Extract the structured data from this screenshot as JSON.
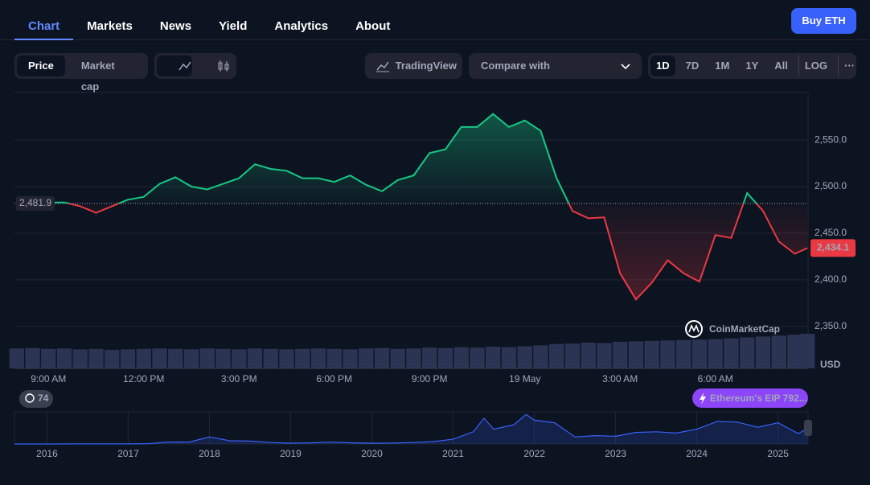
{
  "nav": {
    "tabs": [
      "Chart",
      "Markets",
      "News",
      "Yield",
      "Analytics",
      "About"
    ],
    "button": "Buy ETH"
  },
  "toolbar": {
    "toggle": [
      "Price",
      "Market cap"
    ],
    "tradingview": "TradingView",
    "compare": "Compare with",
    "ranges": [
      "1D",
      "7D",
      "1M",
      "1Y",
      "All",
      "LOG"
    ]
  },
  "watermark": "CoinMarketCap",
  "events_count": 74,
  "event": "Ethereum's EIP 792...",
  "chart_data": [
    {
      "type": "line",
      "x": [
        8,
        8.5,
        9,
        9.5,
        10,
        10.5,
        11,
        11.5,
        12,
        12.5,
        13,
        13.5,
        14,
        14.5,
        15,
        15.5,
        16,
        16.5,
        17,
        17.5,
        18,
        18.5,
        19,
        19.5,
        20,
        20.5,
        21,
        21.5,
        22,
        22.5,
        23,
        23.5,
        24,
        24.5,
        25,
        25.5,
        26,
        26.5,
        27,
        27.5,
        28,
        28.5,
        29,
        29.5,
        30,
        30.5,
        31,
        31.5,
        32,
        32.5,
        32.9
      ],
      "values": [
        2483.6,
        2484.5,
        2483,
        2483,
        2479,
        2472,
        2479,
        2486,
        2489,
        2503,
        2510,
        2500,
        2497,
        2503,
        2509,
        2524,
        2519,
        2517,
        2509,
        2509,
        2505,
        2512,
        2502,
        2495,
        2507,
        2512,
        2536,
        2540,
        2564,
        2564,
        2578,
        2564,
        2571,
        2560,
        2509,
        2474,
        2466,
        2467,
        2407,
        2379,
        2397,
        2421,
        2407,
        2398,
        2448,
        2445,
        2493,
        2474,
        2441,
        2428,
        2434.1
      ],
      "volume": [
        45,
        46,
        44,
        45,
        43,
        44,
        42,
        43,
        44,
        45,
        44,
        43,
        45,
        44,
        43,
        45,
        44,
        43,
        44,
        45,
        44,
        43,
        45,
        46,
        44,
        45,
        47,
        46,
        48,
        47,
        49,
        48,
        50,
        52,
        55,
        56,
        58,
        57,
        60,
        61,
        62,
        63,
        64,
        65,
        66,
        68,
        70,
        72,
        74,
        76,
        78
      ],
      "vlim": [
        0,
        100
      ],
      "xlim": [
        7.93,
        32.92
      ],
      "xticks": [
        {
          "value": 9,
          "label": "9:00 AM"
        },
        {
          "value": 12,
          "label": "12:00 PM"
        },
        {
          "value": 15,
          "label": "3:00 PM"
        },
        {
          "value": 18,
          "label": "6:00 PM"
        },
        {
          "value": 21,
          "label": "9:00 PM"
        },
        {
          "value": 24,
          "label": "19 May"
        },
        {
          "value": 27,
          "label": "3:00 AM"
        },
        {
          "value": 30,
          "label": "6:00 AM"
        }
      ],
      "ylim": [
        2305,
        2601
      ],
      "yticks": [
        {
          "value": 2350,
          "label": "2,350.0"
        },
        {
          "value": 2400,
          "label": "2,400.0"
        },
        {
          "value": 2450,
          "label": "2,450.0"
        },
        {
          "value": 2500,
          "label": "2,500.0"
        },
        {
          "value": 2550,
          "label": "2,550.0"
        }
      ],
      "baseline": {
        "value": 2481.9,
        "label": "2,481.9"
      },
      "last_price": {
        "value": 2434.1,
        "label": "2,434.1"
      },
      "currency": "USD",
      "up_color": "#16c784",
      "down_color": "#ea3943",
      "volume_color": "#2b3553",
      "grid": true
    },
    {
      "type": "area",
      "x": [
        2015.6,
        2016,
        2016.25,
        2016.5,
        2016.75,
        2017,
        2017.25,
        2017.5,
        2017.75,
        2018,
        2018.25,
        2018.5,
        2018.75,
        2019,
        2019.25,
        2019.5,
        2019.75,
        2020,
        2020.25,
        2020.5,
        2020.75,
        2021,
        2021.25,
        2021.38,
        2021.5,
        2021.75,
        2021.9,
        2022,
        2022.25,
        2022.5,
        2022.75,
        2023,
        2023.25,
        2023.5,
        2023.75,
        2024,
        2024.25,
        2024.5,
        2024.75,
        2025,
        2025.25,
        2025.37
      ],
      "values": [
        1,
        1,
        10,
        12,
        12,
        10,
        50,
        300,
        300,
        1100,
        500,
        450,
        220,
        130,
        170,
        290,
        180,
        130,
        140,
        230,
        360,
        740,
        1900,
        4000,
        2300,
        3000,
        4600,
        3700,
        3300,
        1100,
        1300,
        1200,
        1800,
        1900,
        1700,
        2300,
        3500,
        3400,
        2600,
        3300,
        1600,
        2500
      ],
      "xlim": [
        2015.6,
        2025.37
      ],
      "xticks": [
        2016,
        2017,
        2018,
        2019,
        2020,
        2021,
        2022,
        2023,
        2024,
        2025
      ],
      "ylim": [
        0,
        5000
      ],
      "color": "#3861fb"
    }
  ]
}
